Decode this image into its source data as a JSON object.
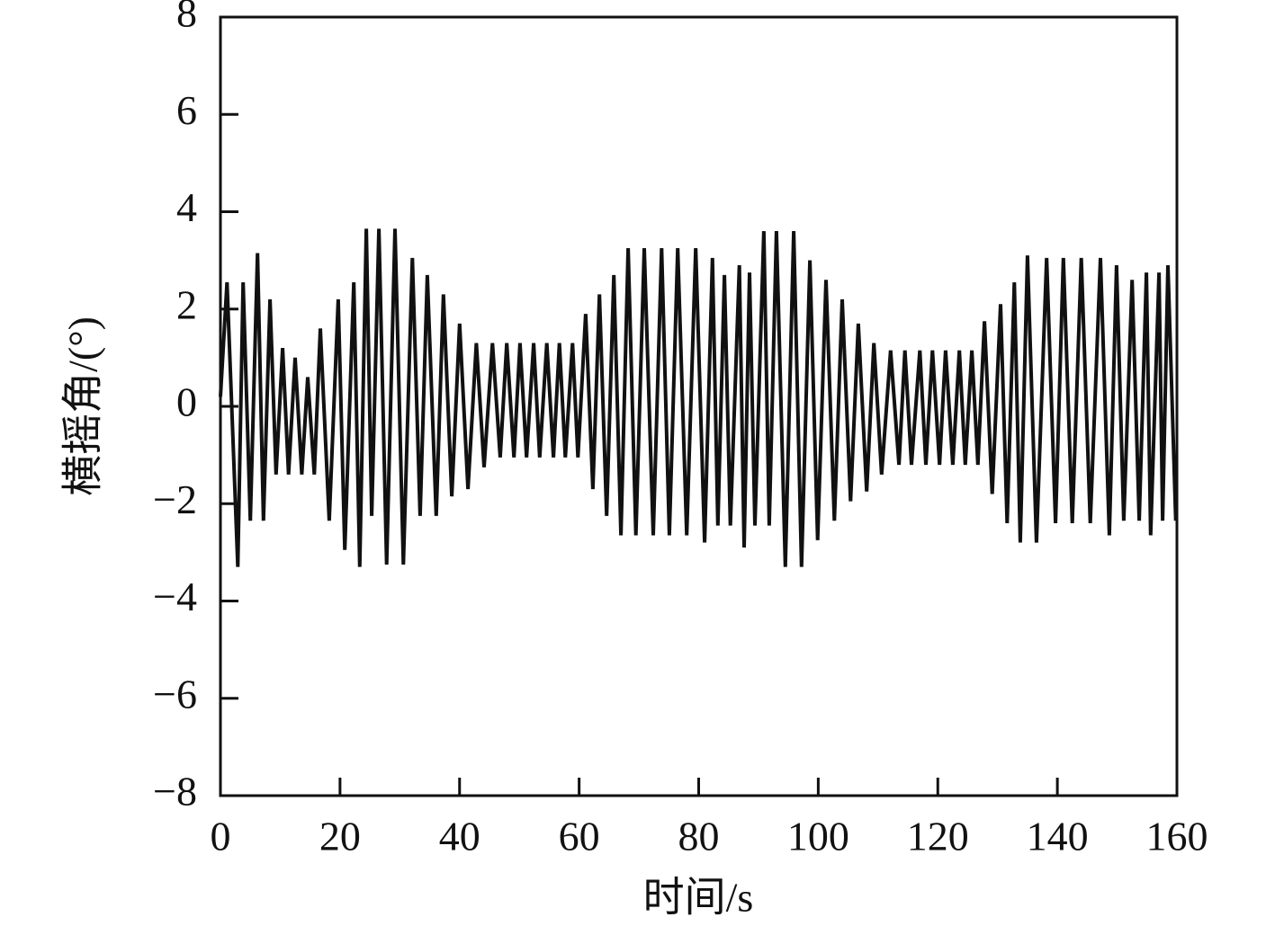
{
  "chart_data": {
    "type": "line",
    "xlabel": "时间/s",
    "ylabel": "横摇角/(°)",
    "x": [
      0,
      1.1,
      2.9,
      3.8,
      5.0,
      6.2,
      7.2,
      8.3,
      9.3,
      10.4,
      11.4,
      12.5,
      13.6,
      14.6,
      15.7,
      16.7,
      18.2,
      19.7,
      20.8,
      22.3,
      23.3,
      24.4,
      25.3,
      26.5,
      27.8,
      29.2,
      30.6,
      32.1,
      33.4,
      34.6,
      36.1,
      37.3,
      38.7,
      40.0,
      41.4,
      42.8,
      44.1,
      45.5,
      46.8,
      47.9,
      49.1,
      50.1,
      51.2,
      52.4,
      53.4,
      54.6,
      55.7,
      56.7,
      57.7,
      58.9,
      59.8,
      61.1,
      62.3,
      63.4,
      64.6,
      65.8,
      67.0,
      68.2,
      69.5,
      70.9,
      72.4,
      73.8,
      75.1,
      76.5,
      78.0,
      79.5,
      81.0,
      82.3,
      83.2,
      84.3,
      85.3,
      86.8,
      87.6,
      88.5,
      89.4,
      90.9,
      91.8,
      93.0,
      94.5,
      95.9,
      97.2,
      98.6,
      99.9,
      101.3,
      102.7,
      104.0,
      105.4,
      106.7,
      108.1,
      109.3,
      110.6,
      112.1,
      113.5,
      114.5,
      115.6,
      117.0,
      118.0,
      119.1,
      120.3,
      121.3,
      122.5,
      123.6,
      124.6,
      125.7,
      126.7,
      127.8,
      129.1,
      130.5,
      131.6,
      132.8,
      133.8,
      135.0,
      136.5,
      138.2,
      139.7,
      141.0,
      142.5,
      144.0,
      145.5,
      147.2,
      148.7,
      149.9,
      151.1,
      152.5,
      153.7,
      154.9,
      155.6,
      157.0,
      157.6,
      158.5,
      159.8
    ],
    "series": [
      {
        "color": "#111111",
        "values": [
          0.2,
          2.55,
          -3.3,
          2.55,
          -2.35,
          3.15,
          -2.35,
          2.2,
          -1.4,
          1.2,
          -1.4,
          1.0,
          -1.4,
          0.6,
          -1.4,
          1.6,
          -2.35,
          2.2,
          -2.95,
          2.55,
          -3.3,
          3.65,
          -2.25,
          3.65,
          -3.25,
          3.65,
          -3.25,
          3.05,
          -2.25,
          2.7,
          -2.25,
          2.3,
          -1.85,
          1.7,
          -1.7,
          1.3,
          -1.25,
          1.3,
          -1.05,
          1.3,
          -1.05,
          1.3,
          -1.05,
          1.3,
          -1.05,
          1.3,
          -1.05,
          1.3,
          -1.05,
          1.3,
          -1.05,
          1.9,
          -1.7,
          2.3,
          -2.25,
          2.7,
          -2.65,
          3.25,
          -2.65,
          3.25,
          -2.65,
          3.25,
          -2.65,
          3.25,
          -2.65,
          3.25,
          -2.8,
          3.05,
          -2.45,
          2.7,
          -2.45,
          2.9,
          -2.9,
          2.75,
          -2.45,
          3.6,
          -2.45,
          3.6,
          -3.3,
          3.6,
          -3.3,
          3.0,
          -2.75,
          2.6,
          -2.35,
          2.2,
          -1.95,
          1.7,
          -1.75,
          1.3,
          -1.4,
          1.15,
          -1.2,
          1.15,
          -1.2,
          1.15,
          -1.2,
          1.15,
          -1.2,
          1.15,
          -1.2,
          1.15,
          -1.2,
          1.15,
          -1.2,
          1.75,
          -1.8,
          2.1,
          -2.4,
          2.55,
          -2.8,
          3.1,
          -2.8,
          3.05,
          -2.4,
          3.05,
          -2.4,
          3.05,
          -2.4,
          3.05,
          -2.65,
          2.9,
          -2.35,
          2.6,
          -2.35,
          2.75,
          -2.65,
          2.75,
          -2.35,
          2.9,
          -2.35
        ]
      }
    ],
    "xlim": [
      0,
      160
    ],
    "xticks": [
      0,
      20,
      40,
      60,
      80,
      100,
      120,
      140,
      160
    ],
    "ylim": [
      -8,
      8
    ],
    "yticks": [
      {
        "value": -8,
        "label": "−8"
      },
      {
        "value": -6,
        "label": "−6"
      },
      {
        "value": -4,
        "label": "−4"
      },
      {
        "value": -2,
        "label": "−2"
      },
      0,
      2,
      4,
      6,
      8
    ]
  }
}
